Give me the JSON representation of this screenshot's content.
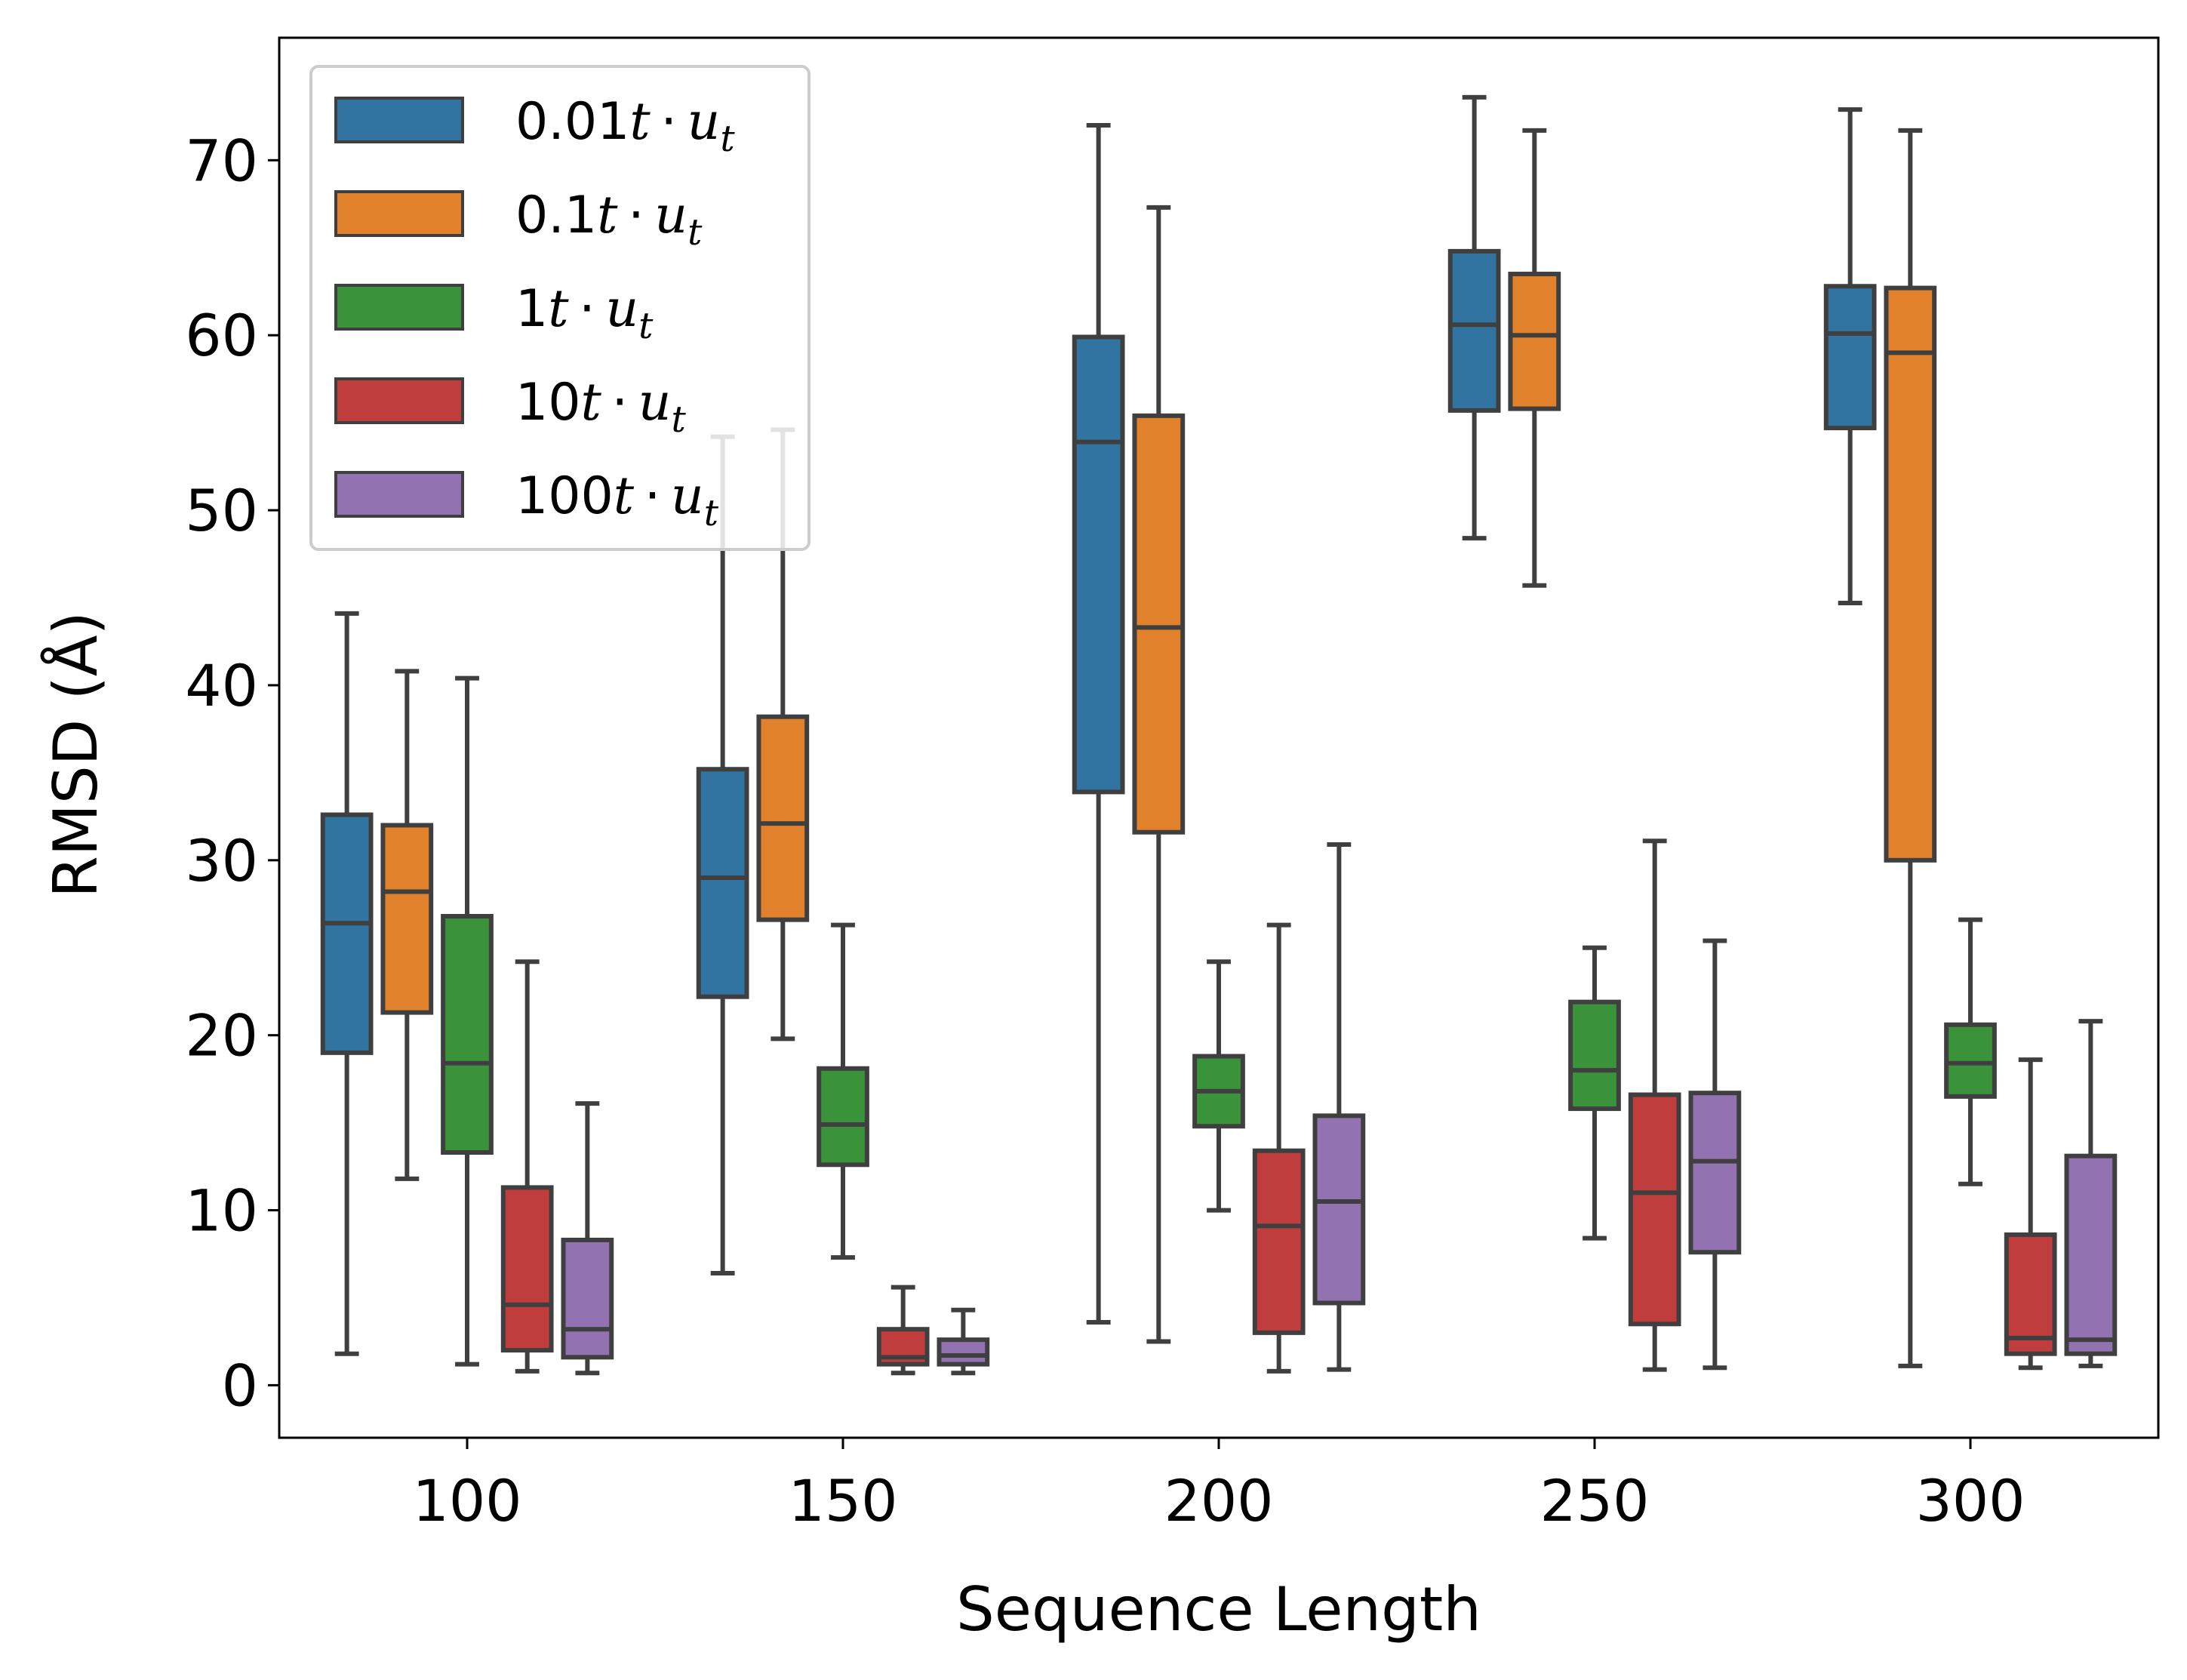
{
  "chart_data": {
    "type": "box",
    "title": "",
    "xlabel": "Sequence Length",
    "ylabel": "RMSD (Å)",
    "categories": [
      "100",
      "150",
      "200",
      "250",
      "300"
    ],
    "ylim": [
      -3,
      77
    ],
    "yticks": [
      0,
      10,
      20,
      30,
      40,
      50,
      60,
      70
    ],
    "ytick_labels": [
      "0",
      "10",
      "20",
      "30",
      "40",
      "50",
      "60",
      "70"
    ],
    "legend_position": "top-left",
    "series": [
      {
        "name": "0.01t·u_t",
        "legend": {
          "coef": "0.01",
          "var": "t",
          "dot": "·",
          "u": "u",
          "sub": "t"
        },
        "color": "#3274a1",
        "boxes": [
          {
            "whislo": 1.8,
            "q1": 19.0,
            "med": 26.4,
            "q3": 32.6,
            "whishi": 44.1
          },
          {
            "whislo": 6.4,
            "q1": 22.2,
            "med": 29.0,
            "q3": 35.2,
            "whishi": 54.2
          },
          {
            "whislo": 3.6,
            "q1": 33.9,
            "med": 53.9,
            "q3": 59.9,
            "whishi": 72.0
          },
          {
            "whislo": 48.4,
            "q1": 55.7,
            "med": 60.6,
            "q3": 64.8,
            "whishi": 73.6
          },
          {
            "whislo": 44.7,
            "q1": 54.7,
            "med": 60.1,
            "q3": 62.8,
            "whishi": 72.9
          }
        ]
      },
      {
        "name": "0.1t·u_t",
        "legend": {
          "coef": "0.1",
          "var": "t",
          "dot": "·",
          "u": "u",
          "sub": "t"
        },
        "color": "#e1812c",
        "boxes": [
          {
            "whislo": 11.8,
            "q1": 21.3,
            "med": 28.2,
            "q3": 32.0,
            "whishi": 40.8
          },
          {
            "whislo": 19.8,
            "q1": 26.6,
            "med": 32.1,
            "q3": 38.2,
            "whishi": 54.6
          },
          {
            "whislo": 2.5,
            "q1": 31.6,
            "med": 43.3,
            "q3": 55.4,
            "whishi": 67.3
          },
          {
            "whislo": 45.7,
            "q1": 55.8,
            "med": 60.0,
            "q3": 63.5,
            "whishi": 71.7
          },
          {
            "whislo": 1.1,
            "q1": 30.0,
            "med": 59.0,
            "q3": 62.7,
            "whishi": 71.7
          }
        ]
      },
      {
        "name": "1t·u_t",
        "legend": {
          "coef": "1",
          "var": "t",
          "dot": "·",
          "u": "u",
          "sub": "t"
        },
        "color": "#3a923a",
        "boxes": [
          {
            "whislo": 1.2,
            "q1": 13.3,
            "med": 18.4,
            "q3": 26.8,
            "whishi": 40.4
          },
          {
            "whislo": 7.3,
            "q1": 12.6,
            "med": 14.9,
            "q3": 18.1,
            "whishi": 26.3
          },
          {
            "whislo": 10.0,
            "q1": 14.8,
            "med": 16.8,
            "q3": 18.8,
            "whishi": 24.2
          },
          {
            "whislo": 8.4,
            "q1": 15.8,
            "med": 18.0,
            "q3": 21.9,
            "whishi": 25.0
          },
          {
            "whislo": 11.5,
            "q1": 16.5,
            "med": 18.4,
            "q3": 20.6,
            "whishi": 26.6
          }
        ]
      },
      {
        "name": "10t·u_t",
        "legend": {
          "coef": "10",
          "var": "t",
          "dot": "·",
          "u": "u",
          "sub": "t"
        },
        "color": "#c03d3e",
        "boxes": [
          {
            "whislo": 0.8,
            "q1": 2.0,
            "med": 4.6,
            "q3": 11.3,
            "whishi": 24.2
          },
          {
            "whislo": 0.7,
            "q1": 1.2,
            "med": 1.6,
            "q3": 3.2,
            "whishi": 5.6
          },
          {
            "whislo": 0.8,
            "q1": 3.0,
            "med": 9.1,
            "q3": 13.4,
            "whishi": 26.3
          },
          {
            "whislo": 0.9,
            "q1": 3.5,
            "med": 11.0,
            "q3": 16.6,
            "whishi": 31.1
          },
          {
            "whislo": 1.0,
            "q1": 1.8,
            "med": 2.7,
            "q3": 8.6,
            "whishi": 18.6
          }
        ]
      },
      {
        "name": "100t·u_t",
        "legend": {
          "coef": "100",
          "var": "t",
          "dot": "·",
          "u": "u",
          "sub": "t"
        },
        "color": "#9372b2",
        "boxes": [
          {
            "whislo": 0.7,
            "q1": 1.6,
            "med": 3.2,
            "q3": 8.3,
            "whishi": 16.1
          },
          {
            "whislo": 0.7,
            "q1": 1.2,
            "med": 1.7,
            "q3": 2.6,
            "whishi": 4.3
          },
          {
            "whislo": 0.9,
            "q1": 4.7,
            "med": 10.5,
            "q3": 15.4,
            "whishi": 30.9
          },
          {
            "whislo": 1.0,
            "q1": 7.6,
            "med": 12.8,
            "q3": 16.7,
            "whishi": 25.4
          },
          {
            "whislo": 1.1,
            "q1": 1.8,
            "med": 2.6,
            "q3": 13.1,
            "whishi": 20.8
          }
        ]
      }
    ]
  },
  "colors": {
    "edge": "#3f3f3f",
    "axis": "#000000",
    "legend_border": "#cccccc"
  }
}
